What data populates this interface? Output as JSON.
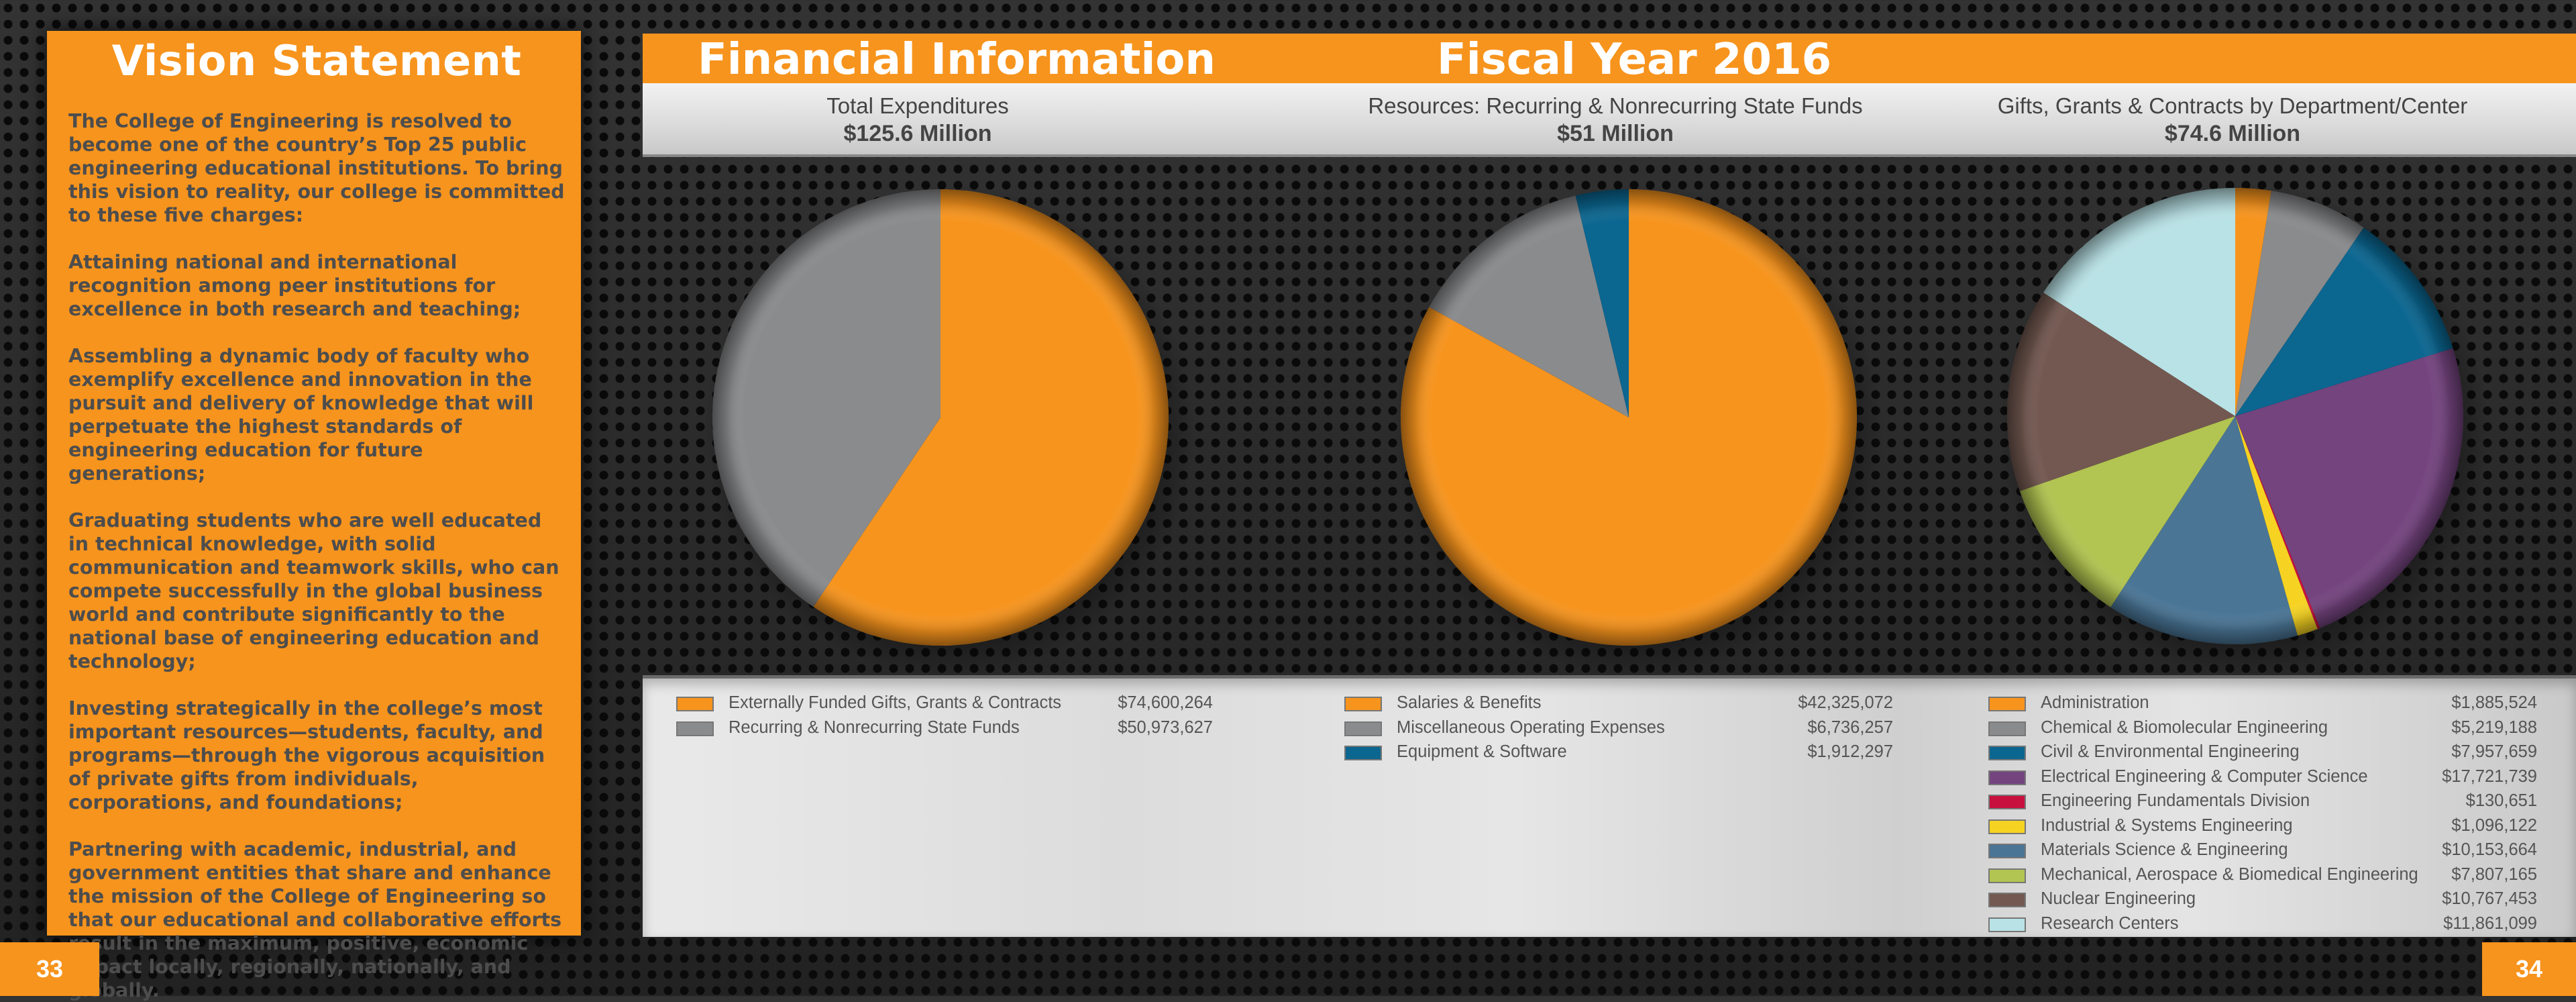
{
  "vision": {
    "title": "Vision Statement",
    "paragraphs": [
      "The College of Engineering is resolved to become one of the country’s Top 25 public engineering educational institutions. To bring this vision to reality, our college is committed to these five charges:",
      "Attaining national and international recognition among peer institutions for excellence in both research and teaching;",
      "Assembling a dynamic body of faculty who exemplify excellence and innovation in the pursuit and delivery of knowledge that will perpetuate the highest standards of engineering education for future generations;",
      "Graduating students who are well educated in technical knowledge, with solid communication and teamwork skills, who can compete successfully in the global business world and contribute significantly to the national base of engineering education and technology;",
      "Investing strategically in the college’s most important resources—students, faculty, and programs—through the vigorous acquisition of private gifts from individuals, corporations, and foundations;",
      "Partnering with academic, industrial, and government entities that share and enhance the mission of the College of Engineering so that our educational and collaborative efforts result in the maximum, positive, economic impact locally, regionally, nationally, and globally."
    ]
  },
  "header": {
    "title_left": "Financial Information",
    "title_right": "Fiscal Year 2016"
  },
  "pages": {
    "left": "33",
    "right": "34"
  },
  "colors": {
    "orange": "#f7941d",
    "gray": "#8a8b8d",
    "blue": "#0b6690",
    "purple": "#74447f",
    "crimson": "#c8103f",
    "yellow": "#f6d322",
    "steel": "#4a7595",
    "lime": "#b2c451",
    "brown": "#725850",
    "lightblue": "#b9e2e6"
  },
  "chart_data": [
    {
      "type": "pie",
      "title": "Total Expenditures",
      "subtitle": "$125.6 Million",
      "slices": [
        {
          "label": "Externally Funded Gifts, Grants & Contracts",
          "display": "$74,600,264",
          "value": 74600264,
          "color": "#f7941d"
        },
        {
          "label": "Recurring & Nonrecurring State Funds",
          "display": "$50,973,627",
          "value": 50973627,
          "color": "#8a8b8d"
        }
      ]
    },
    {
      "type": "pie",
      "title": "Resources: Recurring & Nonrecurring State Funds",
      "subtitle": "$51 Million",
      "slices": [
        {
          "label": "Salaries & Benefits",
          "display": "$42,325,072",
          "value": 42325072,
          "color": "#f7941d"
        },
        {
          "label": "Miscellaneous Operating Expenses",
          "display": "$6,736,257",
          "value": 6736257,
          "color": "#8a8b8d"
        },
        {
          "label": "Equipment & Software",
          "display": "$1,912,297",
          "value": 1912297,
          "color": "#0b6690"
        }
      ]
    },
    {
      "type": "pie",
      "title": "Gifts, Grants & Contracts by Department/Center",
      "subtitle": "$74.6  Million",
      "slices": [
        {
          "label": "Administration",
          "display": "$1,885,524",
          "value": 1885524,
          "color": "#f7941d"
        },
        {
          "label": "Chemical & Biomolecular Engineering",
          "display": "$5,219,188",
          "value": 5219188,
          "color": "#8a8b8d"
        },
        {
          "label": "Civil & Environmental Engineering",
          "display": "$7,957,659",
          "value": 7957659,
          "color": "#0b6690"
        },
        {
          "label": "Electrical Engineering & Computer Science",
          "display": "$17,721,739",
          "value": 17721739,
          "color": "#74447f"
        },
        {
          "label": "Engineering Fundamentals Division",
          "display": "$130,651",
          "value": 130651,
          "color": "#c8103f"
        },
        {
          "label": "Industrial & Systems Engineering",
          "display": "$1,096,122",
          "value": 1096122,
          "color": "#f6d322"
        },
        {
          "label": "Materials Science & Engineering",
          "display": "$10,153,664",
          "value": 10153664,
          "color": "#4a7595"
        },
        {
          "label": "Mechanical, Aerospace & Biomedical Engineering",
          "display": "$7,807,165",
          "value": 7807165,
          "color": "#b2c451"
        },
        {
          "label": "Nuclear Engineering",
          "display": "$10,767,453",
          "value": 10767453,
          "color": "#725850"
        },
        {
          "label": "Research Centers",
          "display": "$11,861,099",
          "value": 11861099,
          "color": "#b9e2e6"
        }
      ]
    }
  ]
}
